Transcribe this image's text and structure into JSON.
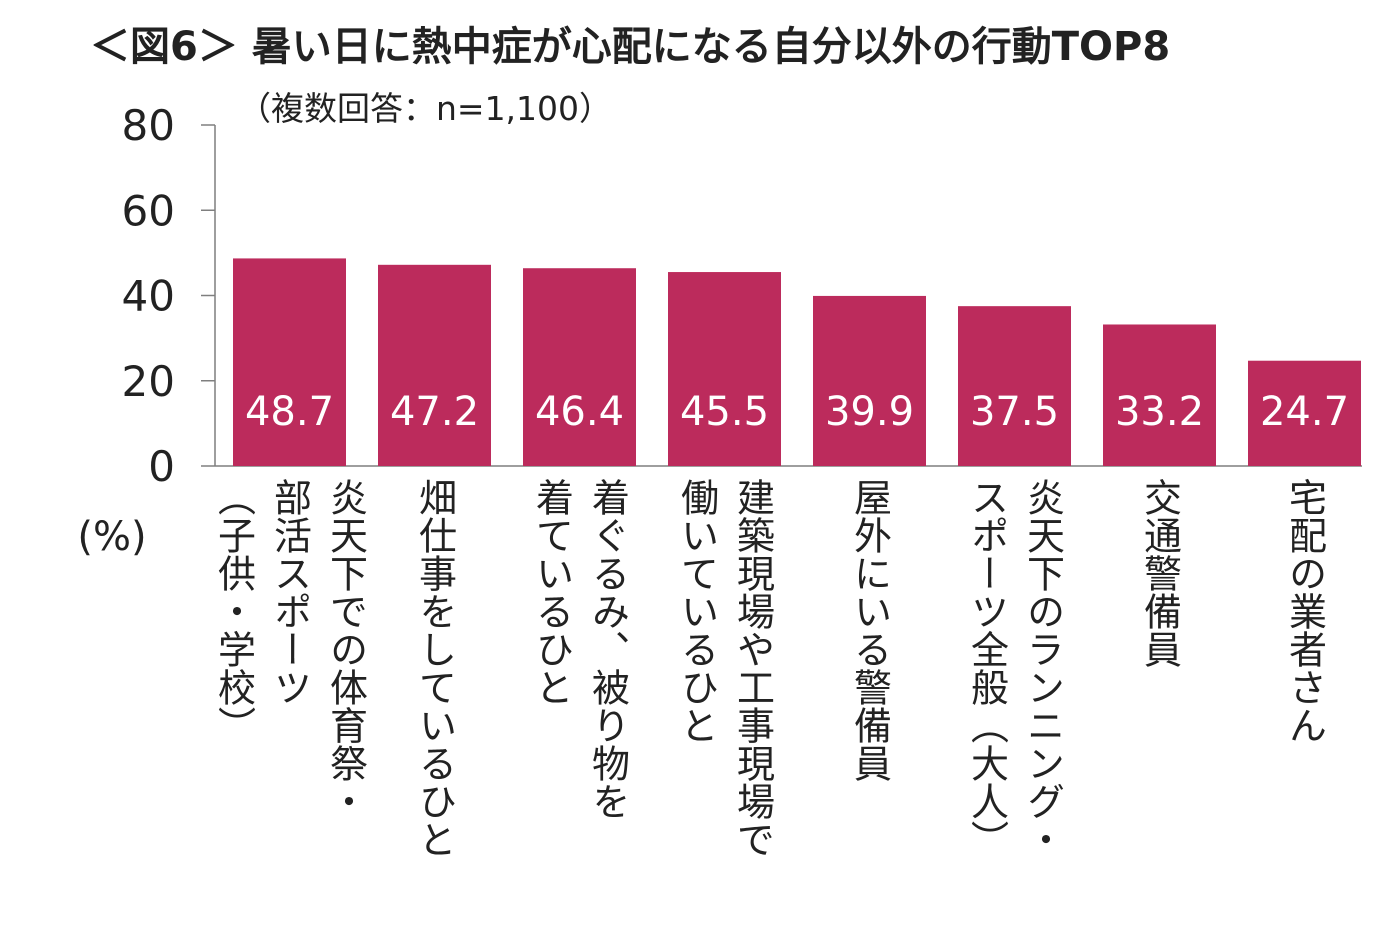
{
  "chart_data": {
    "type": "bar",
    "title": "＜図6＞ 暑い日に熱中症が心配になる自分以外の行動TOP8",
    "subtitle": "（複数回答：n=1,100）",
    "ylabel": "(%)",
    "xlabel": "",
    "ylim": [
      0,
      80
    ],
    "yticks": [
      "0",
      "20",
      "40",
      "60",
      "80"
    ],
    "grid": false,
    "bar_color": "#BC2B5C",
    "label_color": "#FFFFFF",
    "categories": [
      [
        "炎天下での体育祭・",
        "部活スポーツ",
        "（子供・学校）"
      ],
      [
        "畑仕事をしているひと"
      ],
      [
        "着ぐるみ、被り物を",
        "着ているひと"
      ],
      [
        "建築現場や工事現場で",
        "働いているひと"
      ],
      [
        "屋外にいる警備員"
      ],
      [
        "炎天下のランニング・",
        "スポーツ全般（大人）"
      ],
      [
        "交通警備員"
      ],
      [
        "宅配の業者さん"
      ]
    ],
    "values": [
      48.7,
      47.2,
      46.4,
      45.5,
      39.9,
      37.5,
      33.2,
      24.7
    ],
    "data_labels": [
      "48.7",
      "47.2",
      "46.4",
      "45.5",
      "39.9",
      "37.5",
      "33.2",
      "24.7"
    ]
  }
}
